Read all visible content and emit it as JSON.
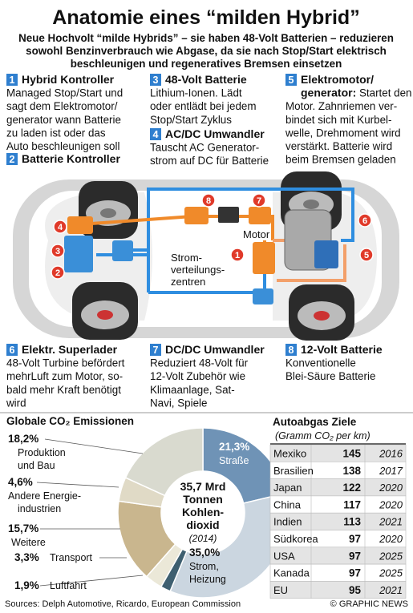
{
  "header": {
    "title": "Anatomie eines “milden Hybrid”",
    "subtitle": [
      "Neue Hochvolt “milde Hybrids” – sie haben 48-Volt Batterien – reduzieren",
      "sowohl Benzinverbrauch wie Abgase, da sie nach Stop/Start elektrisch",
      "beschleunigen und regeneratives Bremsen einsetzen"
    ]
  },
  "components": [
    {
      "number": "1",
      "title": [
        "Hybrid Kontroller"
      ],
      "text": [
        "Managed Stop/Start und",
        "sagt dem Elektromotor/",
        "generator wann Batterie",
        "zu laden ist oder das",
        "Auto beschleunigen soll"
      ]
    },
    {
      "number": "2",
      "title": [
        "Batterie Kontroller"
      ],
      "text": []
    },
    {
      "number": "3",
      "title": [
        "48-Volt Batterie"
      ],
      "text": [
        "Lithium-Ionen. Lädt",
        "oder entlädt bei jedem",
        "Stop/Start Zyklus"
      ]
    },
    {
      "number": "4",
      "title": [
        "AC/DC Umwandler"
      ],
      "text": [
        "Tauscht AC Generator-",
        "strom auf DC für Batterie"
      ]
    },
    {
      "number": "5",
      "title": [
        "Elektromotor/",
        "generator:"
      ],
      "text": [
        "Startet den",
        "Motor. Zahnriemen ver-",
        "bindet sich mit Kurbel-",
        "welle, Drehmoment wird",
        "verstärkt. Batterie wird",
        "beim Bremsen geladen"
      ]
    },
    {
      "number": "6",
      "title": [
        "Elektr. Superlader"
      ],
      "text": [
        "48-Volt Turbine befördert",
        "mehrLuft zum Motor, so-",
        "bald mehr Kraft benötigt",
        "wird"
      ]
    },
    {
      "number": "7",
      "title": [
        "DC/DC Umwandler"
      ],
      "text": [
        "Reduziert 48-Volt für",
        "12-Volt Zubehör wie",
        "Klimaanlage, Sat-",
        "Navi, Spiele"
      ]
    },
    {
      "number": "8",
      "title": [
        "12-Volt Batterie"
      ],
      "text": [
        "Konventionelle",
        "Blei-Säure Batterie"
      ]
    }
  ],
  "diagram": {
    "badges": [
      "4",
      "3",
      "2",
      "8",
      "7",
      "1",
      "6",
      "5"
    ],
    "motor_label": "Motor",
    "distribution_label": [
      "Strom-",
      "verteilungs-",
      "zentren"
    ]
  },
  "chart_data": {
    "type": "pie",
    "title": "Globale CO₂ Emissionen",
    "categories": [
      [
        "Straße"
      ],
      [
        "Strom,",
        "Heizung"
      ],
      [
        "Luftfahrt"
      ],
      [
        "Transport"
      ],
      [
        "Weitere"
      ],
      [
        "Andere Energie-",
        "industrien"
      ],
      [
        "Produktion",
        "und Bau"
      ]
    ],
    "values": [
      21.3,
      35.0,
      1.9,
      3.3,
      15.7,
      4.6,
      18.2
    ],
    "value_labels": [
      "21,3%",
      "35,0%",
      "1,9%",
      "3,3%",
      "15,7%",
      "4,6%",
      "18,2%"
    ],
    "colors": [
      "#6f93b6",
      "#cbd6e0",
      "#3e5f70",
      "#ebe8d8",
      "#c9b68e",
      "#e0dac6",
      "#d9dacf"
    ],
    "center_text": [
      "35,7 Mrd",
      "Tonnen",
      "Kohlen-",
      "dioxid",
      "(2014)"
    ]
  },
  "table": {
    "title": "Autoabgas Ziele",
    "subtitle": "(Gramm CO₂ per km)",
    "rows": [
      [
        "Mexiko",
        145,
        2016
      ],
      [
        "Brasilien",
        138,
        2017
      ],
      [
        "Japan",
        122,
        2020
      ],
      [
        "China",
        117,
        2020
      ],
      [
        "Indien",
        113,
        2021
      ],
      [
        "Südkorea",
        97,
        2020
      ],
      [
        "USA",
        97,
        2025
      ],
      [
        "Kanada",
        97,
        2025
      ],
      [
        "EU",
        95,
        2021
      ]
    ]
  },
  "footer": {
    "sources": "Sources: Delph Automotive, Ricardo, European Commission",
    "credit": "© GRAPHIC NEWS"
  }
}
